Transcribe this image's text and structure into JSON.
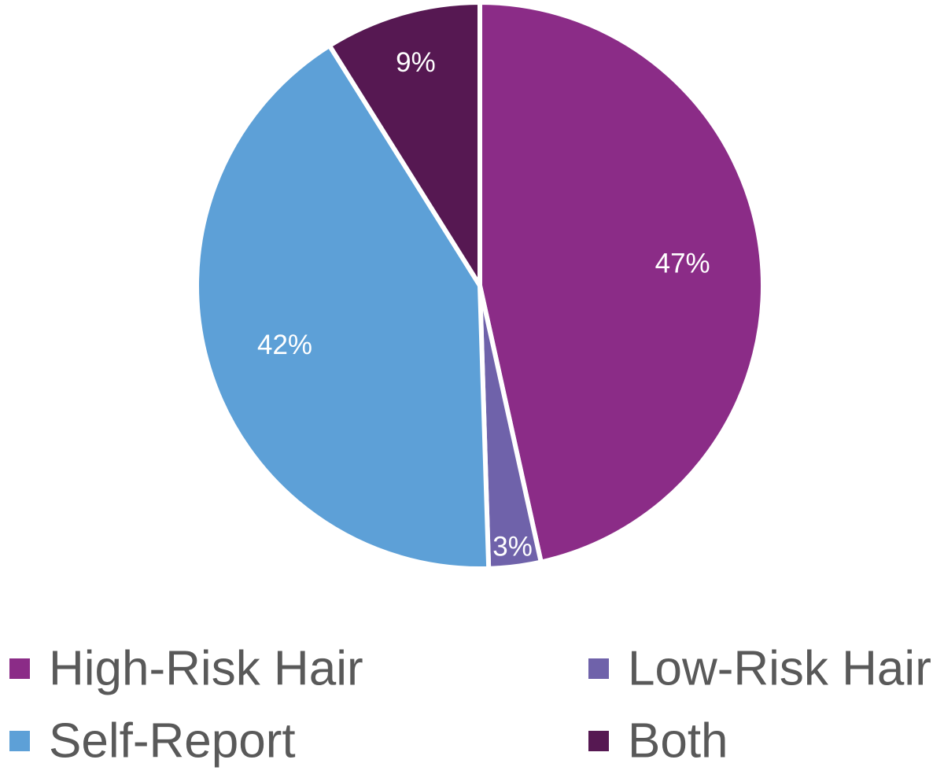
{
  "chart_data": {
    "type": "pie",
    "title": "",
    "legend_position": "bottom",
    "slices": [
      {
        "label": "High-Risk Hair",
        "value": 47,
        "display": "47%",
        "color": "#8B2C87"
      },
      {
        "label": "Low-Risk Hair",
        "value": 3,
        "display": "3%",
        "color": "#6F62AA"
      },
      {
        "label": "Self-Report",
        "value": 42,
        "display": "42%",
        "color": "#5DA0D7"
      },
      {
        "label": "Both",
        "value": 9,
        "display": "9%",
        "color": "#561852"
      }
    ],
    "legend": [
      {
        "label": "High-Risk Hair",
        "color": "#8B2C87"
      },
      {
        "label": "Low-Risk Hair",
        "color": "#6F62AA"
      },
      {
        "label": "Self-Report",
        "color": "#5DA0D7"
      },
      {
        "label": "Both",
        "color": "#561852"
      }
    ]
  }
}
